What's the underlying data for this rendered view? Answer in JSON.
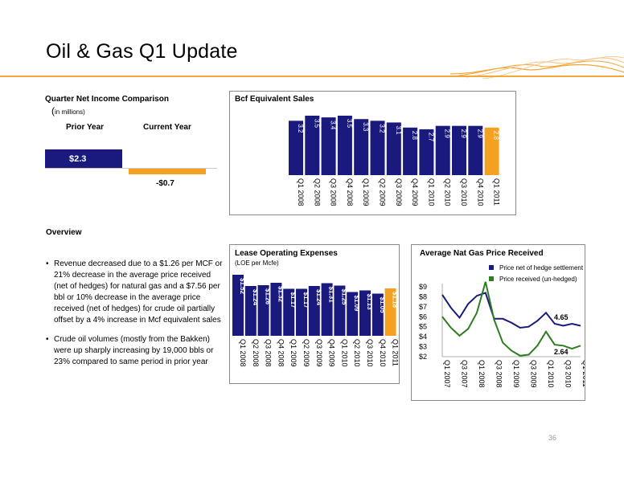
{
  "page": {
    "title": "Oil & Gas Q1 Update",
    "page_number": "36",
    "colors": {
      "navy": "#1a1a7e",
      "orange": "#f4a020",
      "green": "#2e7d1f",
      "rule": "#f4a63a"
    }
  },
  "net_income": {
    "title": "Quarter Net Income Comparison",
    "units_open": "(",
    "units_text": "in millions)",
    "prior_label": "Prior Year",
    "current_label": "Current Year",
    "prior_value_label": "$2.3",
    "current_value_label": "-$0.7",
    "prior_value": 2.3,
    "current_value": -0.7
  },
  "overview": {
    "heading": "Overview",
    "bullets": [
      "Revenue decreased due to a $1.26 per MCF or 21% decrease in the average price received (net of hedges) for natural gas and a $7.56 per bbl or 10% decrease in the average price received (net of hedges) for crude oil partially offset by a 4% increase in Mcf equivalent sales",
      "Crude oil volumes (mostly from the Bakken) were up sharply increasing by 19,000 bbls or 23% compared to same period in prior year"
    ]
  },
  "chart_data": [
    {
      "type": "bar",
      "title": "Bcf Equivalent Sales",
      "categories": [
        "Q1 2008",
        "Q2 2008",
        "Q3 2008",
        "Q4 2008",
        "Q1 2009",
        "Q2 2009",
        "Q3 2009",
        "Q4 2009",
        "Q1 2010",
        "Q2 2010",
        "Q3 2010",
        "Q4 2010",
        "Q1 2011"
      ],
      "values": [
        3.2,
        3.5,
        3.4,
        3.5,
        3.3,
        3.2,
        3.1,
        2.8,
        2.7,
        2.9,
        2.9,
        2.9,
        2.8
      ],
      "labels": [
        "3.2",
        "3.5",
        "3.4",
        "3.5",
        "3.3",
        "3.2",
        "3.1",
        "2.8",
        "2.7",
        "2.9",
        "2.9",
        "2.9",
        "2.8"
      ],
      "highlight_last": true
    },
    {
      "type": "bar",
      "title": "Lease Operating Expenses",
      "subtitle": "(LOE per Mcfe)",
      "categories": [
        "Q1 2008",
        "Q2 2008",
        "Q3 2008",
        "Q4 2008",
        "Q1 2009",
        "Q2 2009",
        "Q3 2009",
        "Q4 2009",
        "Q1 2010",
        "Q2 2010",
        "Q3 2010",
        "Q4 2010",
        "Q1 2011"
      ],
      "values": [
        1.52,
        1.24,
        1.26,
        1.32,
        1.17,
        1.17,
        1.24,
        1.31,
        1.25,
        1.09,
        1.13,
        1.05,
        1.18
      ],
      "labels": [
        "$1.52",
        "$1.24",
        "$1.26",
        "$1.32",
        "$1.17",
        "$1.17",
        "$1.24",
        "$1.31",
        "$1.25",
        "$1.09",
        "$1.13",
        "$1.05",
        "$1.18"
      ],
      "highlight_last": true
    },
    {
      "type": "line",
      "title": "Average Nat Gas Price Received",
      "x": [
        "Q1 2007",
        "Q2 2007",
        "Q3 2007",
        "Q4 2007",
        "Q1 2008",
        "Q2 2008",
        "Q3 2008",
        "Q4 2008",
        "Q1 2009",
        "Q2 2009",
        "Q3 2009",
        "Q4 2009",
        "Q1 2010",
        "Q2 2010",
        "Q3 2010",
        "Q4 2010",
        "Q1 2011"
      ],
      "x_tick_labels": [
        "Q1 2007",
        "Q3 2007",
        "Q1 2008",
        "Q3 2008",
        "Q1 2009",
        "Q3 2009",
        "Q1 2010",
        "Q3 2010",
        "Q1 2011"
      ],
      "series": [
        {
          "name": "Price net of hedge settlement",
          "color": "#1a1a7e",
          "values": [
            8.2,
            6.9,
            5.9,
            7.3,
            8.1,
            8.4,
            5.8,
            5.8,
            5.4,
            4.9,
            5.0,
            5.6,
            6.4,
            5.3,
            5.1,
            5.3,
            5.1
          ]
        },
        {
          "name": "Price received (un-hedged)",
          "color": "#2e7d1f",
          "values": [
            6.0,
            4.9,
            4.1,
            4.8,
            6.4,
            9.5,
            5.7,
            3.4,
            2.6,
            2.1,
            2.2,
            3.1,
            4.5,
            3.2,
            3.1,
            2.8,
            3.1
          ]
        }
      ],
      "annotations": [
        "4.65",
        "2.64"
      ],
      "y_tick_labels": [
        "$2",
        "$3",
        "$4",
        "$5",
        "$6",
        "$7",
        "$8",
        "$9"
      ],
      "ylim": [
        2,
        9
      ],
      "legend": "top-right"
    }
  ]
}
